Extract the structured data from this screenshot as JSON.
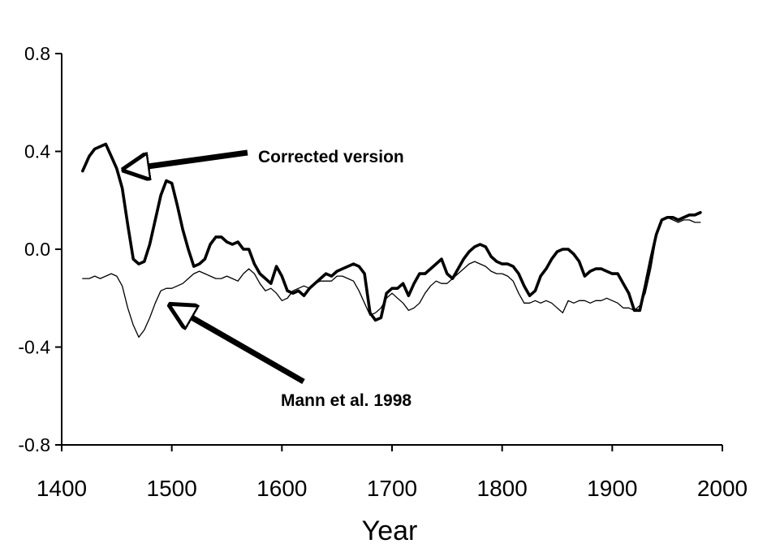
{
  "chart_data": {
    "type": "line",
    "title": "",
    "xlabel": "Year",
    "ylabel": "",
    "xlim": [
      1400,
      2000
    ],
    "ylim": [
      -0.8,
      0.8
    ],
    "x_ticks": [
      1400,
      1500,
      1600,
      1700,
      1800,
      1900,
      2000
    ],
    "y_ticks": [
      0.8,
      0.4,
      0.0,
      -0.4,
      -0.8
    ],
    "x_tick_labels": [
      "1400",
      "1500",
      "1600",
      "1700",
      "1800",
      "1900",
      "2000"
    ],
    "y_tick_labels": [
      "0.8",
      "0.4",
      "0.0",
      "-0.4",
      "-0.8"
    ],
    "grid": false,
    "series": [
      {
        "name": "Corrected version",
        "style": "thick",
        "x": [
          1419,
          1425,
          1430,
          1435,
          1440,
          1445,
          1450,
          1455,
          1460,
          1465,
          1470,
          1475,
          1480,
          1485,
          1490,
          1495,
          1500,
          1505,
          1510,
          1515,
          1520,
          1525,
          1530,
          1535,
          1540,
          1545,
          1550,
          1555,
          1560,
          1565,
          1570,
          1575,
          1580,
          1585,
          1590,
          1595,
          1600,
          1605,
          1610,
          1615,
          1620,
          1625,
          1630,
          1635,
          1640,
          1645,
          1650,
          1655,
          1660,
          1665,
          1670,
          1675,
          1680,
          1685,
          1690,
          1695,
          1700,
          1705,
          1710,
          1715,
          1720,
          1725,
          1730,
          1735,
          1740,
          1745,
          1750,
          1755,
          1760,
          1765,
          1770,
          1775,
          1780,
          1785,
          1790,
          1795,
          1800,
          1805,
          1810,
          1815,
          1820,
          1825,
          1830,
          1835,
          1840,
          1845,
          1850,
          1855,
          1860,
          1865,
          1870,
          1875,
          1880,
          1885,
          1890,
          1895,
          1900,
          1905,
          1910,
          1915,
          1920,
          1925,
          1930,
          1935,
          1940,
          1945,
          1950,
          1955,
          1960,
          1965,
          1970,
          1975,
          1980
        ],
        "y": [
          0.32,
          0.38,
          0.41,
          0.42,
          0.43,
          0.38,
          0.33,
          0.25,
          0.1,
          -0.04,
          -0.06,
          -0.05,
          0.02,
          0.12,
          0.22,
          0.28,
          0.27,
          0.18,
          0.08,
          0.0,
          -0.07,
          -0.06,
          -0.04,
          0.02,
          0.05,
          0.05,
          0.03,
          0.02,
          0.03,
          0.0,
          0.0,
          -0.06,
          -0.1,
          -0.12,
          -0.14,
          -0.07,
          -0.11,
          -0.17,
          -0.18,
          -0.17,
          -0.19,
          -0.16,
          -0.14,
          -0.12,
          -0.1,
          -0.11,
          -0.09,
          -0.08,
          -0.07,
          -0.06,
          -0.07,
          -0.1,
          -0.26,
          -0.29,
          -0.28,
          -0.18,
          -0.16,
          -0.16,
          -0.14,
          -0.19,
          -0.14,
          -0.1,
          -0.1,
          -0.08,
          -0.06,
          -0.04,
          -0.1,
          -0.12,
          -0.08,
          -0.04,
          -0.01,
          0.01,
          0.02,
          0.01,
          -0.03,
          -0.05,
          -0.06,
          -0.06,
          -0.07,
          -0.1,
          -0.15,
          -0.19,
          -0.17,
          -0.11,
          -0.08,
          -0.04,
          -0.01,
          0.0,
          0.0,
          -0.02,
          -0.05,
          -0.11,
          -0.09,
          -0.08,
          -0.08,
          -0.09,
          -0.1,
          -0.1,
          -0.14,
          -0.18,
          -0.25,
          -0.25,
          -0.15,
          -0.04,
          0.06,
          0.12,
          0.13,
          0.13,
          0.12,
          0.13,
          0.14,
          0.14,
          0.15
        ]
      },
      {
        "name": "Mann et al. 1998",
        "style": "thin",
        "x": [
          1419,
          1425,
          1430,
          1435,
          1440,
          1445,
          1450,
          1455,
          1460,
          1465,
          1470,
          1475,
          1480,
          1485,
          1490,
          1495,
          1500,
          1505,
          1510,
          1515,
          1520,
          1525,
          1530,
          1535,
          1540,
          1545,
          1550,
          1555,
          1560,
          1565,
          1570,
          1575,
          1580,
          1585,
          1590,
          1595,
          1600,
          1605,
          1610,
          1615,
          1620,
          1625,
          1630,
          1635,
          1640,
          1645,
          1650,
          1655,
          1660,
          1665,
          1670,
          1675,
          1680,
          1685,
          1690,
          1695,
          1700,
          1705,
          1710,
          1715,
          1720,
          1725,
          1730,
          1735,
          1740,
          1745,
          1750,
          1755,
          1760,
          1765,
          1770,
          1775,
          1780,
          1785,
          1790,
          1795,
          1800,
          1805,
          1810,
          1815,
          1820,
          1825,
          1830,
          1835,
          1840,
          1845,
          1850,
          1855,
          1860,
          1865,
          1870,
          1875,
          1880,
          1885,
          1890,
          1895,
          1900,
          1905,
          1910,
          1915,
          1920,
          1925,
          1930,
          1935,
          1940,
          1945,
          1950,
          1955,
          1960,
          1965,
          1970,
          1975,
          1980
        ],
        "y": [
          -0.12,
          -0.12,
          -0.11,
          -0.12,
          -0.11,
          -0.1,
          -0.11,
          -0.15,
          -0.24,
          -0.31,
          -0.36,
          -0.33,
          -0.28,
          -0.22,
          -0.17,
          -0.16,
          -0.16,
          -0.15,
          -0.14,
          -0.12,
          -0.1,
          -0.09,
          -0.1,
          -0.11,
          -0.12,
          -0.12,
          -0.11,
          -0.12,
          -0.13,
          -0.1,
          -0.08,
          -0.1,
          -0.14,
          -0.17,
          -0.16,
          -0.18,
          -0.21,
          -0.2,
          -0.17,
          -0.16,
          -0.15,
          -0.16,
          -0.14,
          -0.13,
          -0.13,
          -0.13,
          -0.11,
          -0.11,
          -0.12,
          -0.13,
          -0.17,
          -0.22,
          -0.27,
          -0.26,
          -0.24,
          -0.2,
          -0.18,
          -0.2,
          -0.22,
          -0.25,
          -0.24,
          -0.22,
          -0.18,
          -0.15,
          -0.13,
          -0.14,
          -0.14,
          -0.12,
          -0.1,
          -0.08,
          -0.06,
          -0.05,
          -0.06,
          -0.07,
          -0.09,
          -0.1,
          -0.1,
          -0.11,
          -0.13,
          -0.18,
          -0.22,
          -0.22,
          -0.21,
          -0.22,
          -0.21,
          -0.22,
          -0.24,
          -0.26,
          -0.21,
          -0.22,
          -0.21,
          -0.21,
          -0.22,
          -0.21,
          -0.21,
          -0.2,
          -0.21,
          -0.22,
          -0.24,
          -0.24,
          -0.25,
          -0.23,
          -0.18,
          -0.08,
          0.05,
          0.12,
          0.13,
          0.12,
          0.11,
          0.12,
          0.12,
          0.11,
          0.11
        ]
      }
    ],
    "annotations": [
      {
        "text": "Corrected version",
        "points_to_series": "Corrected version"
      },
      {
        "text": "Mann et al. 1998",
        "points_to_series": "Mann et al. 1998"
      }
    ]
  }
}
